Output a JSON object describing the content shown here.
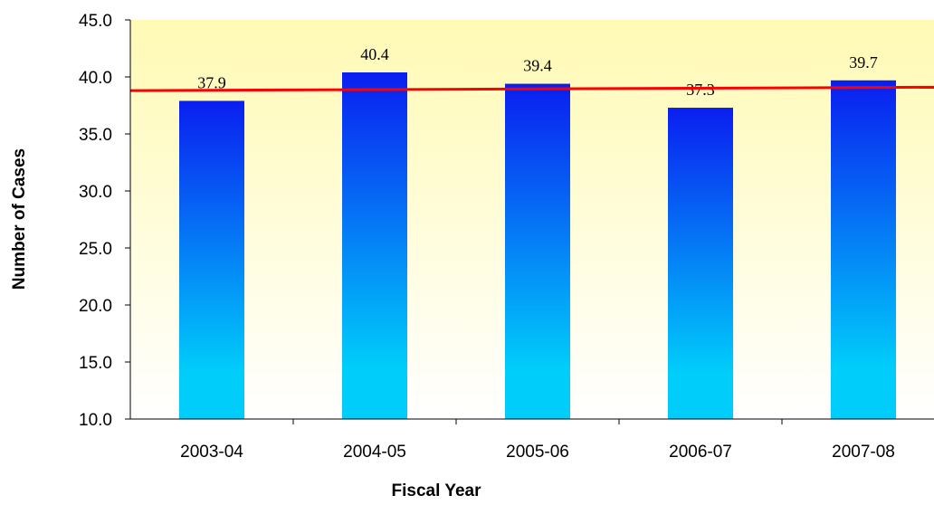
{
  "chart_data": {
    "type": "bar",
    "title": "",
    "xlabel": "Fiscal Year",
    "ylabel": "Number of Cases",
    "categories": [
      "2003-04",
      "2004-05",
      "2005-06",
      "2006-07",
      "2007-08"
    ],
    "values": [
      37.9,
      40.4,
      39.4,
      37.3,
      39.7
    ],
    "data_labels": [
      "37.9",
      "40.4",
      "39.4",
      "37.3",
      "39.7"
    ],
    "ylim": [
      10,
      45
    ],
    "yticks": [
      10,
      15,
      20,
      25,
      30,
      35,
      40,
      45
    ],
    "ytick_labels": [
      "10.0",
      "15.0",
      "20.0",
      "25.0",
      "30.0",
      "35.0",
      "40.0",
      "45.0"
    ],
    "trend_line": {
      "start_value": 38.8,
      "end_value": 39.1,
      "color": "#ff0000"
    },
    "grid": false,
    "colors": {
      "bar_top": "#0a1ef0",
      "bar_bottom": "#00cdfa",
      "plot_bg_top": "#fffab4",
      "plot_bg_bottom": "#ffffff",
      "trend": "#ff0000"
    }
  }
}
